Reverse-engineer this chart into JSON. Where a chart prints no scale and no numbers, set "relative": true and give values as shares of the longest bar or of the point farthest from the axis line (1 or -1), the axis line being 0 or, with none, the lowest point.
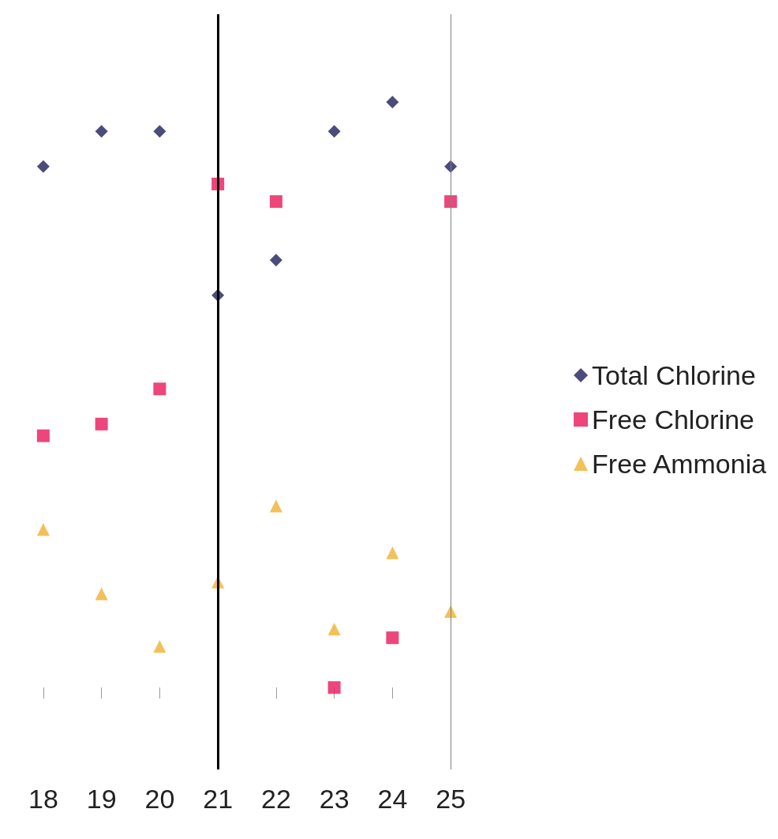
{
  "chart_data": {
    "type": "scatter",
    "relative": true,
    "categories": [
      "18",
      "19",
      "20",
      "21",
      "22",
      "23",
      "24",
      "25"
    ],
    "series": [
      {
        "name": "Total Chlorine",
        "color": "#1f1f5a",
        "marker": "diamond",
        "values": [
          0.89,
          0.95,
          0.95,
          0.67,
          0.73,
          0.95,
          1,
          0.89
        ]
      },
      {
        "name": "Free Chlorine",
        "color": "#e8185a",
        "marker": "square",
        "values": [
          0.43,
          0.45,
          0.51,
          0.86,
          0.83,
          0,
          0.085,
          0.83
        ]
      },
      {
        "name": "Free Ammonia",
        "color": "#f0b030",
        "marker": "triangle",
        "values": [
          0.27,
          0.16,
          0.07,
          0.18,
          0.31,
          0.1,
          0.23,
          0.13
        ]
      }
    ],
    "ref_lines": [
      {
        "axis": "x",
        "value": "21",
        "color": "#000000",
        "line_style": "solid"
      },
      {
        "axis": "x",
        "value": "25",
        "color": "#808080",
        "line_style": "solid"
      }
    ],
    "legend": "right",
    "grid": false
  }
}
